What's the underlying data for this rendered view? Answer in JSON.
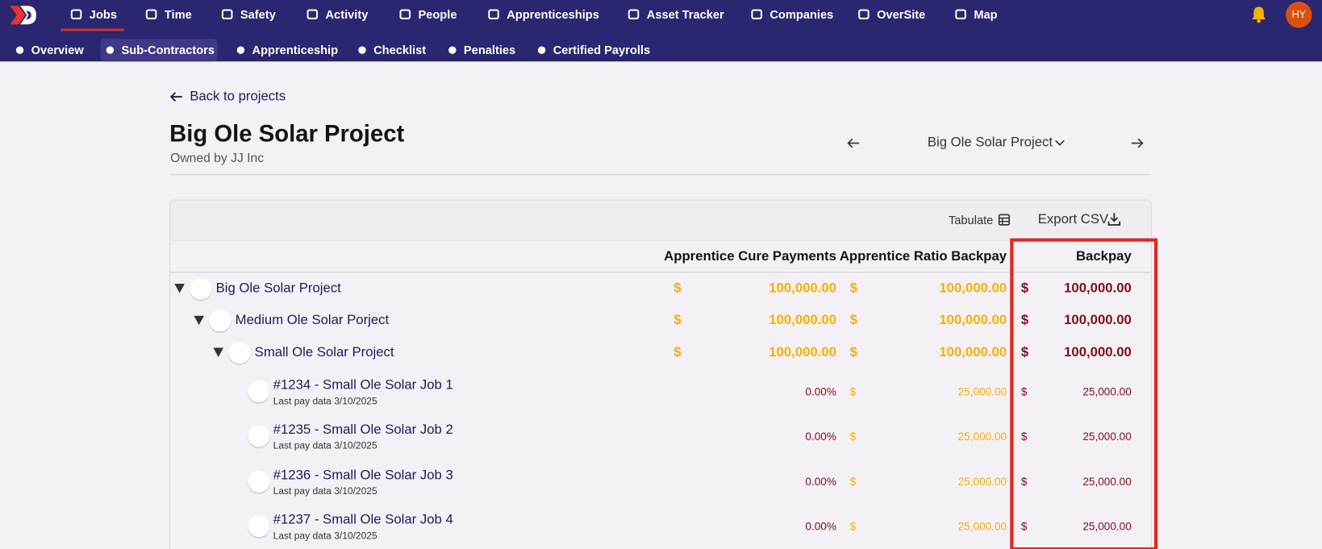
{
  "nav": {
    "items": [
      {
        "label": "Jobs",
        "active": true
      },
      {
        "label": "Time",
        "active": false
      },
      {
        "label": "Safety",
        "active": false
      },
      {
        "label": "Activity",
        "active": false
      },
      {
        "label": "People",
        "active": false
      },
      {
        "label": "Apprenticeships",
        "active": false
      },
      {
        "label": "Asset Tracker",
        "active": false
      },
      {
        "label": "Companies",
        "active": false
      },
      {
        "label": "OverSite",
        "active": false
      },
      {
        "label": "Map",
        "active": false
      }
    ],
    "avatar": "HY"
  },
  "subnav": {
    "items": [
      {
        "label": "Overview",
        "active": false
      },
      {
        "label": "Sub-Contractors",
        "active": true
      },
      {
        "label": "Apprenticeship",
        "active": false
      },
      {
        "label": "Checklist",
        "active": false
      },
      {
        "label": "Penalties",
        "active": false
      },
      {
        "label": "Certified Payrolls",
        "active": false
      }
    ]
  },
  "page": {
    "back_link": "Back to projects",
    "title": "Big Ole Solar Project",
    "owner": "Owned by JJ Inc",
    "project_selector": "Big Ole Solar Project"
  },
  "toolbar": {
    "tabulate": "Tabulate",
    "export": "Export CSV"
  },
  "table": {
    "columns": [
      "Apprentice Cure Payments",
      "Apprentice Ratio Backpay",
      "Backpay"
    ],
    "rows": [
      {
        "name": "Big Ole Solar Project",
        "cells": [
          {
            "currency": "$",
            "amount": "100,000.00"
          },
          {
            "currency": "$",
            "amount": "100,000.00"
          },
          {
            "currency": "$",
            "amount": "100,000.00"
          }
        ],
        "children": [
          {
            "name": "Medium Ole Solar Porject",
            "cells": [
              {
                "currency": "$",
                "amount": "100,000.00"
              },
              {
                "currency": "$",
                "amount": "100,000.00"
              },
              {
                "currency": "$",
                "amount": "100,000.00"
              }
            ],
            "children": [
              {
                "name": "Small Ole Solar Project",
                "cells": [
                  {
                    "currency": "$",
                    "amount": "100,000.00"
                  },
                  {
                    "currency": "$",
                    "amount": "100,000.00"
                  },
                  {
                    "currency": "$",
                    "amount": "100,000.00"
                  }
                ],
                "children": [
                  {
                    "name": "#1234 - Small Ole Solar Job 1",
                    "note": "Last pay data 3/10/2025",
                    "cells": [
                      {
                        "amount": "0.00%"
                      },
                      {
                        "currency": "$",
                        "amount": "25,000.00"
                      },
                      {
                        "currency": "$",
                        "amount": "25,000.00"
                      }
                    ]
                  },
                  {
                    "name": "#1235 - Small Ole Solar Job 2",
                    "note": "Last pay data 3/10/2025",
                    "cells": [
                      {
                        "amount": "0.00%"
                      },
                      {
                        "currency": "$",
                        "amount": "25,000.00"
                      },
                      {
                        "currency": "$",
                        "amount": "25,000.00"
                      }
                    ]
                  },
                  {
                    "name": "#1236 - Small Ole Solar Job 3",
                    "note": "Last pay data 3/10/2025",
                    "cells": [
                      {
                        "amount": "0.00%"
                      },
                      {
                        "currency": "$",
                        "amount": "25,000.00"
                      },
                      {
                        "currency": "$",
                        "amount": "25,000.00"
                      }
                    ]
                  },
                  {
                    "name": "#1237 - Small Ole Solar Job 4",
                    "note": "Last pay data 3/10/2025",
                    "cells": [
                      {
                        "amount": "0.00%"
                      },
                      {
                        "currency": "$",
                        "amount": "25,000.00"
                      },
                      {
                        "currency": "$",
                        "amount": "25,000.00"
                      }
                    ]
                  }
                ]
              }
            ]
          }
        ]
      }
    ]
  }
}
